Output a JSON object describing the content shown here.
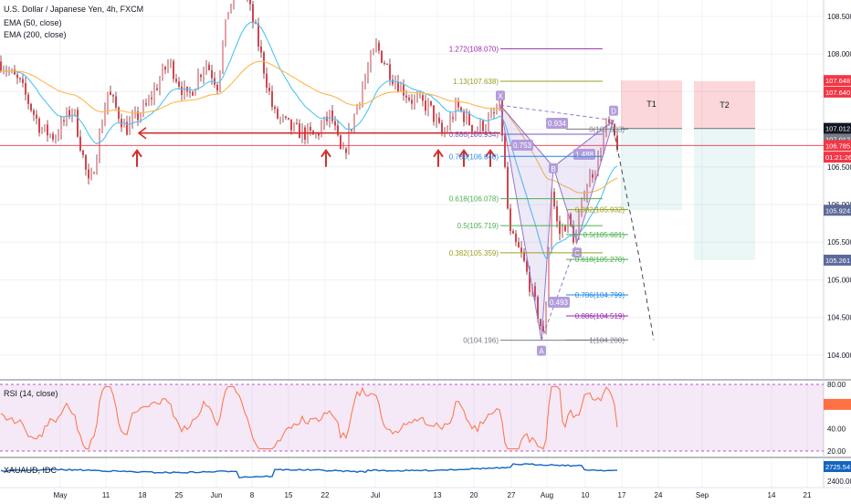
{
  "chart_data": {
    "type": "candlestick",
    "instrument": "U.S. Dollar / Japanese Yen, 4h, FXCM",
    "indicators": [
      "EMA (50, close)",
      "EMA (200, close)"
    ],
    "x_ticks": [
      "May",
      "11",
      "18",
      "25",
      "Jun",
      "8",
      "15",
      "22",
      "Jul",
      "13",
      "20",
      "27",
      "Aug",
      "10",
      "17",
      "24",
      "Sep",
      "14",
      "21"
    ],
    "price_axis": {
      "ylim": [
        103.9,
        109.05
      ],
      "ticks": [
        "108.500",
        "108.000",
        "107.500",
        "106.500",
        "106.000",
        "105.500",
        "105.000",
        "104.500",
        "104.000"
      ]
    },
    "price_tags": [
      {
        "label": "107.648",
        "value": 107.648,
        "bg": "#f23645"
      },
      {
        "label": "107.640",
        "value": 107.64,
        "bg": "#f23645"
      },
      {
        "label": "107.012",
        "value": 107.012,
        "bg": "#131722"
      },
      {
        "label": "107.012",
        "value": 107.012,
        "bg": "#787b86"
      },
      {
        "label": "106.785",
        "value": 106.785,
        "bg": "#f23645"
      },
      {
        "label": "01:21:26",
        "value": 106.63,
        "bg": "#f23645"
      },
      {
        "label": "105.924",
        "value": 105.924,
        "bg": "#5b6a9a"
      },
      {
        "label": "105.261",
        "value": 105.261,
        "bg": "#5b6a9a"
      }
    ],
    "support_level": 106.95,
    "fib_levels": [
      {
        "label": "1.272(108.070)",
        "value": 108.07,
        "color": "#9c27b0"
      },
      {
        "label": "1.13(107.638)",
        "value": 107.638,
        "color": "#9aa020"
      },
      {
        "label": "0.886(106.934)",
        "value": 106.934,
        "color": "#7e57c2"
      },
      {
        "label": "0.786(106.640)",
        "value": 106.64,
        "color": "#1e88e5"
      },
      {
        "label": "0.618(106.078)",
        "value": 106.078,
        "color": "#4caf50"
      },
      {
        "label": "0.5(105.719)",
        "value": 105.719,
        "color": "#4caf50"
      },
      {
        "label": "0.382(105.359)",
        "value": 105.359,
        "color": "#9aa020"
      },
      {
        "label": "0(104.196)",
        "value": 104.196,
        "color": "#787b86"
      }
    ],
    "fib_ext_levels": [
      {
        "label": "0(107.003)",
        "value": 107.003,
        "color": "#787b86"
      },
      {
        "label": "0.382(105.932)",
        "value": 105.932,
        "color": "#9aa020"
      },
      {
        "label": "0.5(105.601)",
        "value": 105.601,
        "color": "#4caf50"
      },
      {
        "label": "0.618(105.270)",
        "value": 105.27,
        "color": "#4caf50"
      },
      {
        "label": "0.786(104.799)",
        "value": 104.799,
        "color": "#1e88e5"
      },
      {
        "label": "0.886(104.519)",
        "value": 104.519,
        "color": "#9c27b0"
      },
      {
        "label": "1(104.200)",
        "value": 104.2,
        "color": "#787b86"
      }
    ],
    "harmonic_points": [
      {
        "name": "X",
        "value": 107.32
      },
      {
        "name": "A",
        "value": 104.196
      },
      {
        "name": "B",
        "value": 106.5
      },
      {
        "name": "C",
        "value": 105.5
      },
      {
        "name": "D",
        "value": 107.12
      }
    ],
    "ratio_labels": [
      "0.934",
      "0.753",
      "1.488",
      "0.493"
    ],
    "targets": [
      {
        "name": "T1",
        "top": 107.648,
        "entry": 107.012,
        "bottom": 105.924
      },
      {
        "name": "T2",
        "top": 107.64,
        "entry": 107.012,
        "bottom": 105.261
      }
    ],
    "last_price": 106.785,
    "rsi": {
      "label": "RSI (14, close)",
      "ylim": [
        15,
        85
      ],
      "ticks": [
        "80.00",
        "60.00",
        "40.00",
        "20.00"
      ],
      "band": [
        20,
        80
      ],
      "last": 62
    },
    "sub_indicator": {
      "label": "XAUAUD, IDC",
      "value_tag": "2725.54",
      "ticks": [
        "2400.00"
      ]
    }
  }
}
